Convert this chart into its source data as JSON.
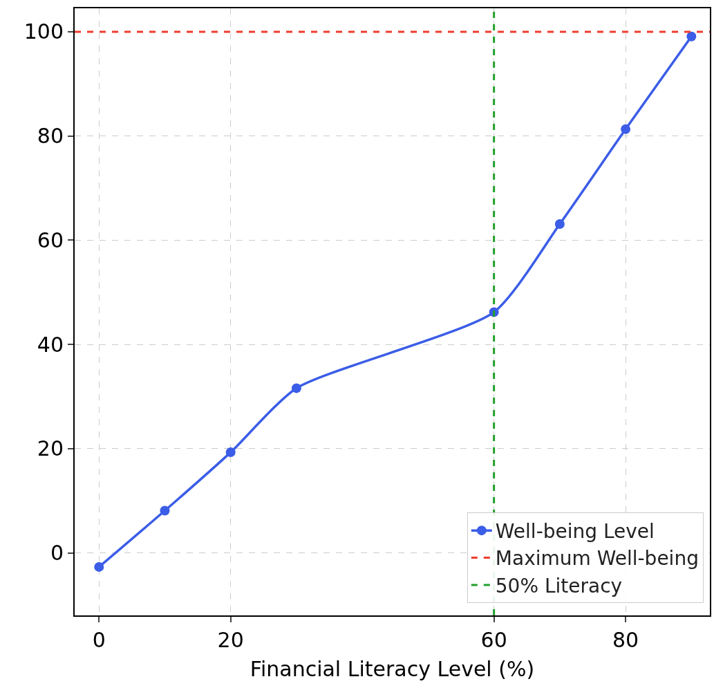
{
  "chart_data": {
    "type": "line",
    "xlabel": "Financial Literacy Level (%)",
    "x": [
      0,
      10,
      20,
      30,
      60,
      70,
      80,
      90
    ],
    "series": [
      {
        "name": "Well-being Level",
        "color": "#3b5de7",
        "values": [
          -2.7,
          8.1,
          19.3,
          31.6,
          46.2,
          63.1,
          81.3,
          99.1
        ]
      }
    ],
    "xlim": [
      -3.7,
      92.8
    ],
    "ylim": [
      -12,
      104.5
    ],
    "xticks": [
      0,
      20,
      60,
      80
    ],
    "yticks": [
      0,
      20,
      40,
      60,
      80,
      100
    ],
    "ref_lines": [
      {
        "axis": "y",
        "value": 100,
        "label": "Maximum Well-being",
        "color": "#f03c2e",
        "line_style": "dashed"
      },
      {
        "axis": "x",
        "value": 60,
        "label": "50% Literacy",
        "color": "#22a02a",
        "line_style": "dashed"
      }
    ],
    "grid": true,
    "legend": "bottom right",
    "marker": "circle",
    "line_style": "solid"
  }
}
